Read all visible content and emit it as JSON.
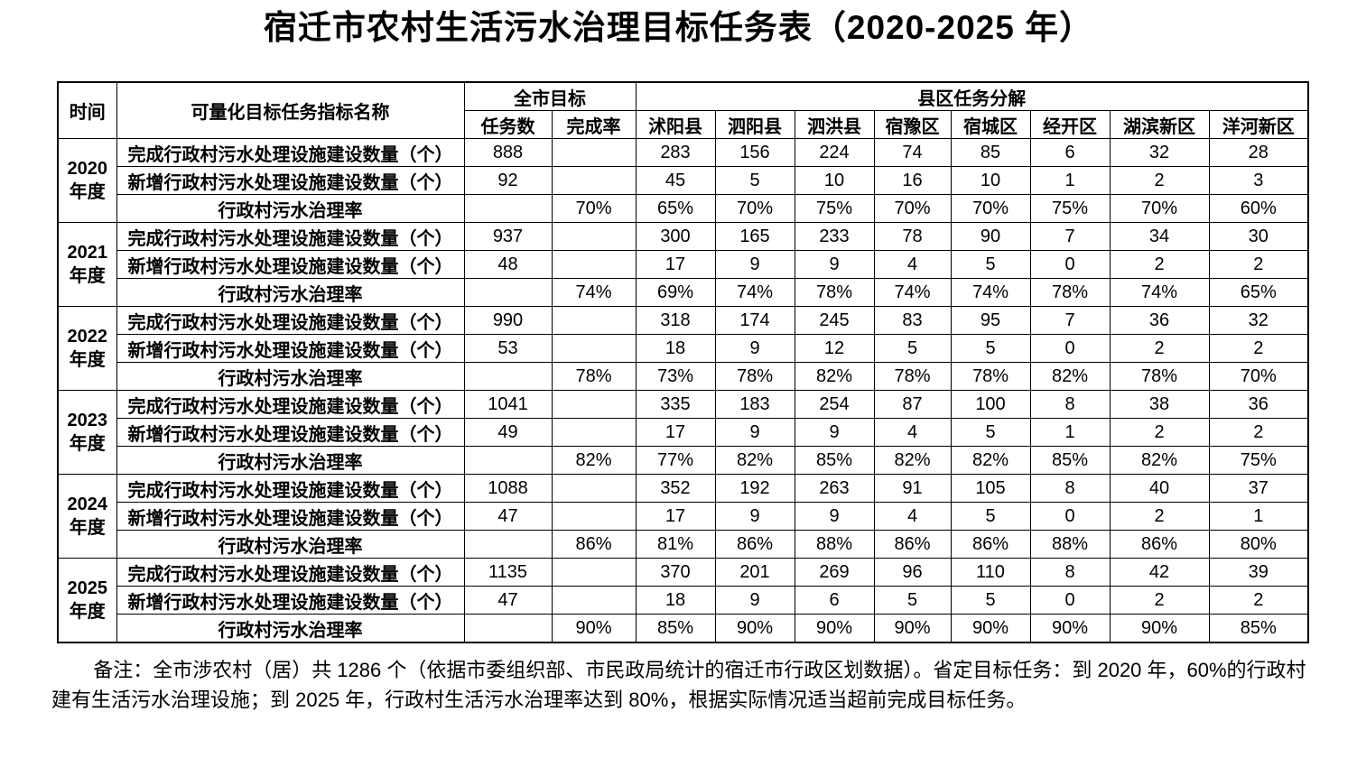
{
  "title": "宿迁市农村生活污水治理目标任务表（2020-2025 年）",
  "table": {
    "header": {
      "time": "时间",
      "indicator_name": "可量化目标任务指标名称",
      "city_goal": "全市目标",
      "task_count": "任务数",
      "completion_rate": "完成率",
      "county_breakdown": "县区任务分解",
      "counties": [
        "沭阳县",
        "泗阳县",
        "泗洪县",
        "宿豫区",
        "宿城区",
        "经开区",
        "湖滨新区",
        "洋河新区"
      ]
    },
    "row_labels": {
      "completed": "完成行政村污水处理设施建设数量（个）",
      "added": "新增行政村污水处理设施建设数量（个）",
      "rate": "行政村污水治理率"
    },
    "year_suffix": "年度",
    "years": [
      {
        "year": "2020",
        "completed": {
          "task": "888",
          "counties": [
            "283",
            "156",
            "224",
            "74",
            "85",
            "6",
            "32",
            "28"
          ]
        },
        "added": {
          "task": "92",
          "counties": [
            "45",
            "5",
            "10",
            "16",
            "10",
            "1",
            "2",
            "3"
          ]
        },
        "rate": {
          "completion": "70%",
          "counties": [
            "65%",
            "70%",
            "75%",
            "70%",
            "70%",
            "75%",
            "70%",
            "60%"
          ]
        }
      },
      {
        "year": "2021",
        "completed": {
          "task": "937",
          "counties": [
            "300",
            "165",
            "233",
            "78",
            "90",
            "7",
            "34",
            "30"
          ]
        },
        "added": {
          "task": "48",
          "counties": [
            "17",
            "9",
            "9",
            "4",
            "5",
            "0",
            "2",
            "2"
          ]
        },
        "rate": {
          "completion": "74%",
          "counties": [
            "69%",
            "74%",
            "78%",
            "74%",
            "74%",
            "78%",
            "74%",
            "65%"
          ]
        }
      },
      {
        "year": "2022",
        "completed": {
          "task": "990",
          "counties": [
            "318",
            "174",
            "245",
            "83",
            "95",
            "7",
            "36",
            "32"
          ]
        },
        "added": {
          "task": "53",
          "counties": [
            "18",
            "9",
            "12",
            "5",
            "5",
            "0",
            "2",
            "2"
          ]
        },
        "rate": {
          "completion": "78%",
          "counties": [
            "73%",
            "78%",
            "82%",
            "78%",
            "78%",
            "82%",
            "78%",
            "70%"
          ]
        }
      },
      {
        "year": "2023",
        "completed": {
          "task": "1041",
          "counties": [
            "335",
            "183",
            "254",
            "87",
            "100",
            "8",
            "38",
            "36"
          ]
        },
        "added": {
          "task": "49",
          "counties": [
            "17",
            "9",
            "9",
            "4",
            "5",
            "1",
            "2",
            "2"
          ]
        },
        "rate": {
          "completion": "82%",
          "counties": [
            "77%",
            "82%",
            "85%",
            "82%",
            "82%",
            "85%",
            "82%",
            "75%"
          ]
        }
      },
      {
        "year": "2024",
        "completed": {
          "task": "1088",
          "counties": [
            "352",
            "192",
            "263",
            "91",
            "105",
            "8",
            "40",
            "37"
          ]
        },
        "added": {
          "task": "47",
          "counties": [
            "17",
            "9",
            "9",
            "4",
            "5",
            "0",
            "2",
            "1"
          ]
        },
        "rate": {
          "completion": "86%",
          "counties": [
            "81%",
            "86%",
            "88%",
            "86%",
            "86%",
            "88%",
            "86%",
            "80%"
          ]
        }
      },
      {
        "year": "2025",
        "completed": {
          "task": "1135",
          "counties": [
            "370",
            "201",
            "269",
            "96",
            "110",
            "8",
            "42",
            "39"
          ]
        },
        "added": {
          "task": "47",
          "counties": [
            "18",
            "9",
            "6",
            "5",
            "5",
            "0",
            "2",
            "2"
          ]
        },
        "rate": {
          "completion": "90%",
          "counties": [
            "85%",
            "90%",
            "90%",
            "90%",
            "90%",
            "90%",
            "90%",
            "85%"
          ]
        }
      }
    ]
  },
  "note": "备注：全市涉农村（居）共 1286 个（依据市委组织部、市民政局统计的宿迁市行政区划数据）。省定目标任务：到 2020 年，60%的行政村建有生活污水治理设施；到 2025 年，行政村生活污水治理率达到 80%，根据实际情况适当超前完成目标任务。"
}
